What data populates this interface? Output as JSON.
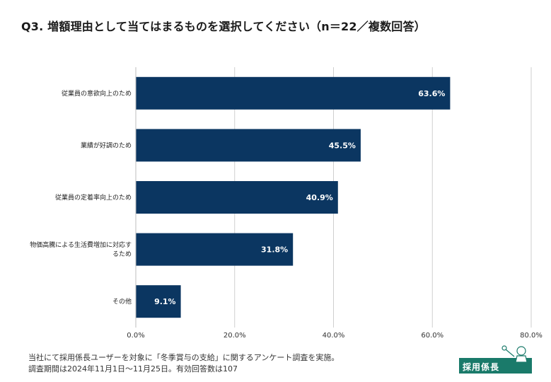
{
  "header": {
    "title": "Q3. 増額理由として当てはまるものを選択してください（n＝22／複数回答）"
  },
  "chart_data": {
    "type": "bar",
    "orientation": "horizontal",
    "title": "Q3. 増額理由として当てはまるものを選択してください（n＝22／複数回答）",
    "categories": [
      [
        "従業員の意欲向上のため"
      ],
      [
        "業績が好調のため"
      ],
      [
        "従業員の定着率向上のため"
      ],
      [
        "物価高騰による生活費増加に対応す",
        "るため"
      ],
      [
        "その他"
      ]
    ],
    "values": [
      63.6,
      45.5,
      40.9,
      31.8,
      9.1
    ],
    "data_labels": [
      "63.6%",
      "45.5%",
      "40.9%",
      "31.8%",
      "9.1%"
    ],
    "xlim": [
      0,
      80
    ],
    "x_ticks": [
      0,
      20,
      40,
      60,
      80
    ],
    "x_tick_labels": [
      "0.0%",
      "20.0%",
      "40.0%",
      "60.0%",
      "80.0%"
    ],
    "grid": true,
    "xlabel": "",
    "ylabel": "",
    "bar_color": "#0b3661",
    "grid_color": "#cfcfcf"
  },
  "footnote": {
    "line1": "当社にて採用係長ユーザーを対象に「冬季賞与の支給」に関するアンケート調査を実施。",
    "line2": "調査期間は2024年11月1日〜11月25日。有効回答数は107"
  },
  "logo": {
    "text": "採用係長",
    "color": "#1a7a6a"
  }
}
